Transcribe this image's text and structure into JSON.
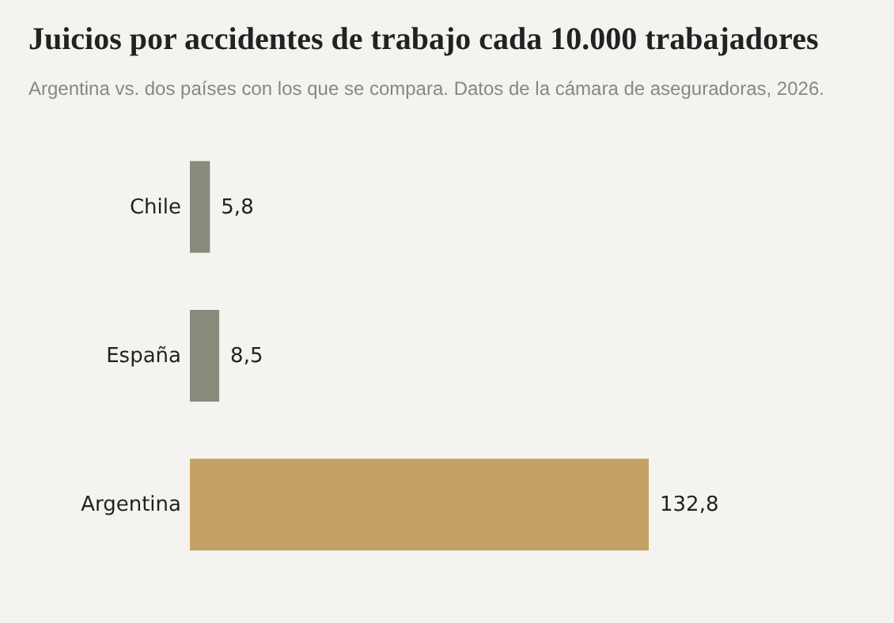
{
  "chart_data": {
    "type": "bar",
    "orientation": "horizontal",
    "title": "Juicios por accidentes de trabajo cada 10.000 trabajadores",
    "subtitle": "Argentina vs. dos países con los que se compara. Datos de la cámara de aseguradoras, 2026.",
    "categories": [
      "Chile",
      "España",
      "Argentina"
    ],
    "values": [
      5.8,
      8.5,
      132.8
    ],
    "colors": [
      "#8a8a7c",
      "#8a8a7c",
      "#c4a265"
    ],
    "value_labels": [
      "5,8",
      "8,5",
      "132,8"
    ]
  }
}
